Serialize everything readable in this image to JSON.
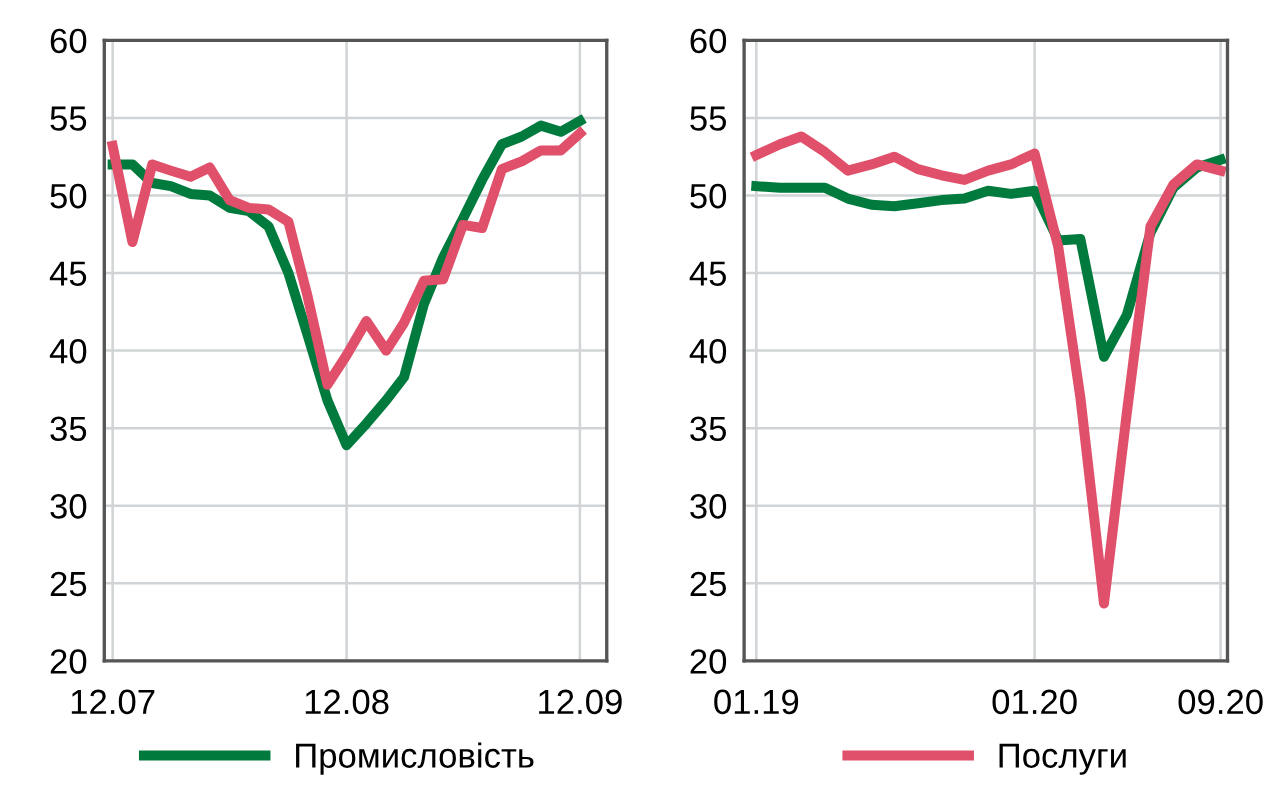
{
  "chart_data": [
    {
      "type": "line",
      "x": [
        "2007-12",
        "2008-01",
        "2008-02",
        "2008-03",
        "2008-04",
        "2008-05",
        "2008-06",
        "2008-07",
        "2008-08",
        "2008-09",
        "2008-10",
        "2008-11",
        "2008-12",
        "2009-01",
        "2009-02",
        "2009-03",
        "2009-04",
        "2009-05",
        "2009-06",
        "2009-07",
        "2009-08",
        "2009-09",
        "2009-10",
        "2009-11",
        "2009-12"
      ],
      "xlim": [
        "2007-11-18",
        "2010-01-12"
      ],
      "xticks": [
        {
          "value": "2007-12",
          "label": "12.07"
        },
        {
          "value": "2008-12",
          "label": "12.08"
        },
        {
          "value": "2009-12",
          "label": "12.09"
        }
      ],
      "ylim": [
        20,
        60
      ],
      "yticks": [
        20,
        25,
        30,
        35,
        40,
        45,
        50,
        55,
        60
      ],
      "grid": true,
      "legend": "bottom",
      "line_style": "solid",
      "series": [
        {
          "name": "Промисловість",
          "color": "#007a3d",
          "values": [
            52,
            52,
            50.8,
            50.6,
            50.1,
            50,
            49.2,
            49,
            48,
            45,
            41,
            36.8,
            33.9,
            35.3,
            36.8,
            38.3,
            43,
            46,
            48.5,
            51,
            53.3,
            53.8,
            54.5,
            54.1,
            54.8
          ]
        },
        {
          "name": "Послуги",
          "color": "#e0506a",
          "values": [
            53.2,
            47,
            52,
            51.6,
            51.2,
            51.8,
            49.7,
            49.2,
            49.1,
            48.3,
            43.5,
            37.8,
            39.7,
            41.9,
            40,
            41.8,
            44.5,
            44.6,
            48.1,
            47.9,
            51.7,
            52.2,
            52.9,
            52.9,
            54
          ]
        }
      ]
    },
    {
      "type": "line",
      "x": [
        "2019-01",
        "2019-02",
        "2019-03",
        "2019-04",
        "2019-05",
        "2019-06",
        "2019-07",
        "2019-08",
        "2019-09",
        "2019-10",
        "2019-11",
        "2019-12",
        "2020-01",
        "2020-02",
        "2020-03",
        "2020-04",
        "2020-05",
        "2020-06",
        "2020-07",
        "2020-08",
        "2020-09"
      ],
      "xlim": [
        "2018-12-16",
        "2020-09-10"
      ],
      "xticks": [
        {
          "value": "2019-01",
          "label": "01.19"
        },
        {
          "value": "2020-01",
          "label": "01.20"
        },
        {
          "value": "2020-09",
          "label": "09.20"
        }
      ],
      "ylim": [
        20,
        60
      ],
      "yticks": [
        20,
        25,
        30,
        35,
        40,
        45,
        50,
        55,
        60
      ],
      "grid": true,
      "legend": "bottom",
      "line_style": "solid",
      "series": [
        {
          "name": "Промисловість",
          "color": "#007a3d",
          "values": [
            50.6,
            50.5,
            50.5,
            50.5,
            49.8,
            49.4,
            49.3,
            49.5,
            49.7,
            49.8,
            50.3,
            50.1,
            50.3,
            47.1,
            47.2,
            39.6,
            42.3,
            47.6,
            50.5,
            51.8,
            52.3
          ]
        },
        {
          "name": "Послуги",
          "color": "#e0506a",
          "values": [
            52.6,
            53.3,
            53.8,
            52.8,
            51.6,
            52,
            52.5,
            51.7,
            51.3,
            51,
            51.6,
            52,
            52.7,
            46.7,
            37,
            23.7,
            36,
            48,
            50.7,
            52,
            51.6
          ]
        }
      ]
    }
  ]
}
